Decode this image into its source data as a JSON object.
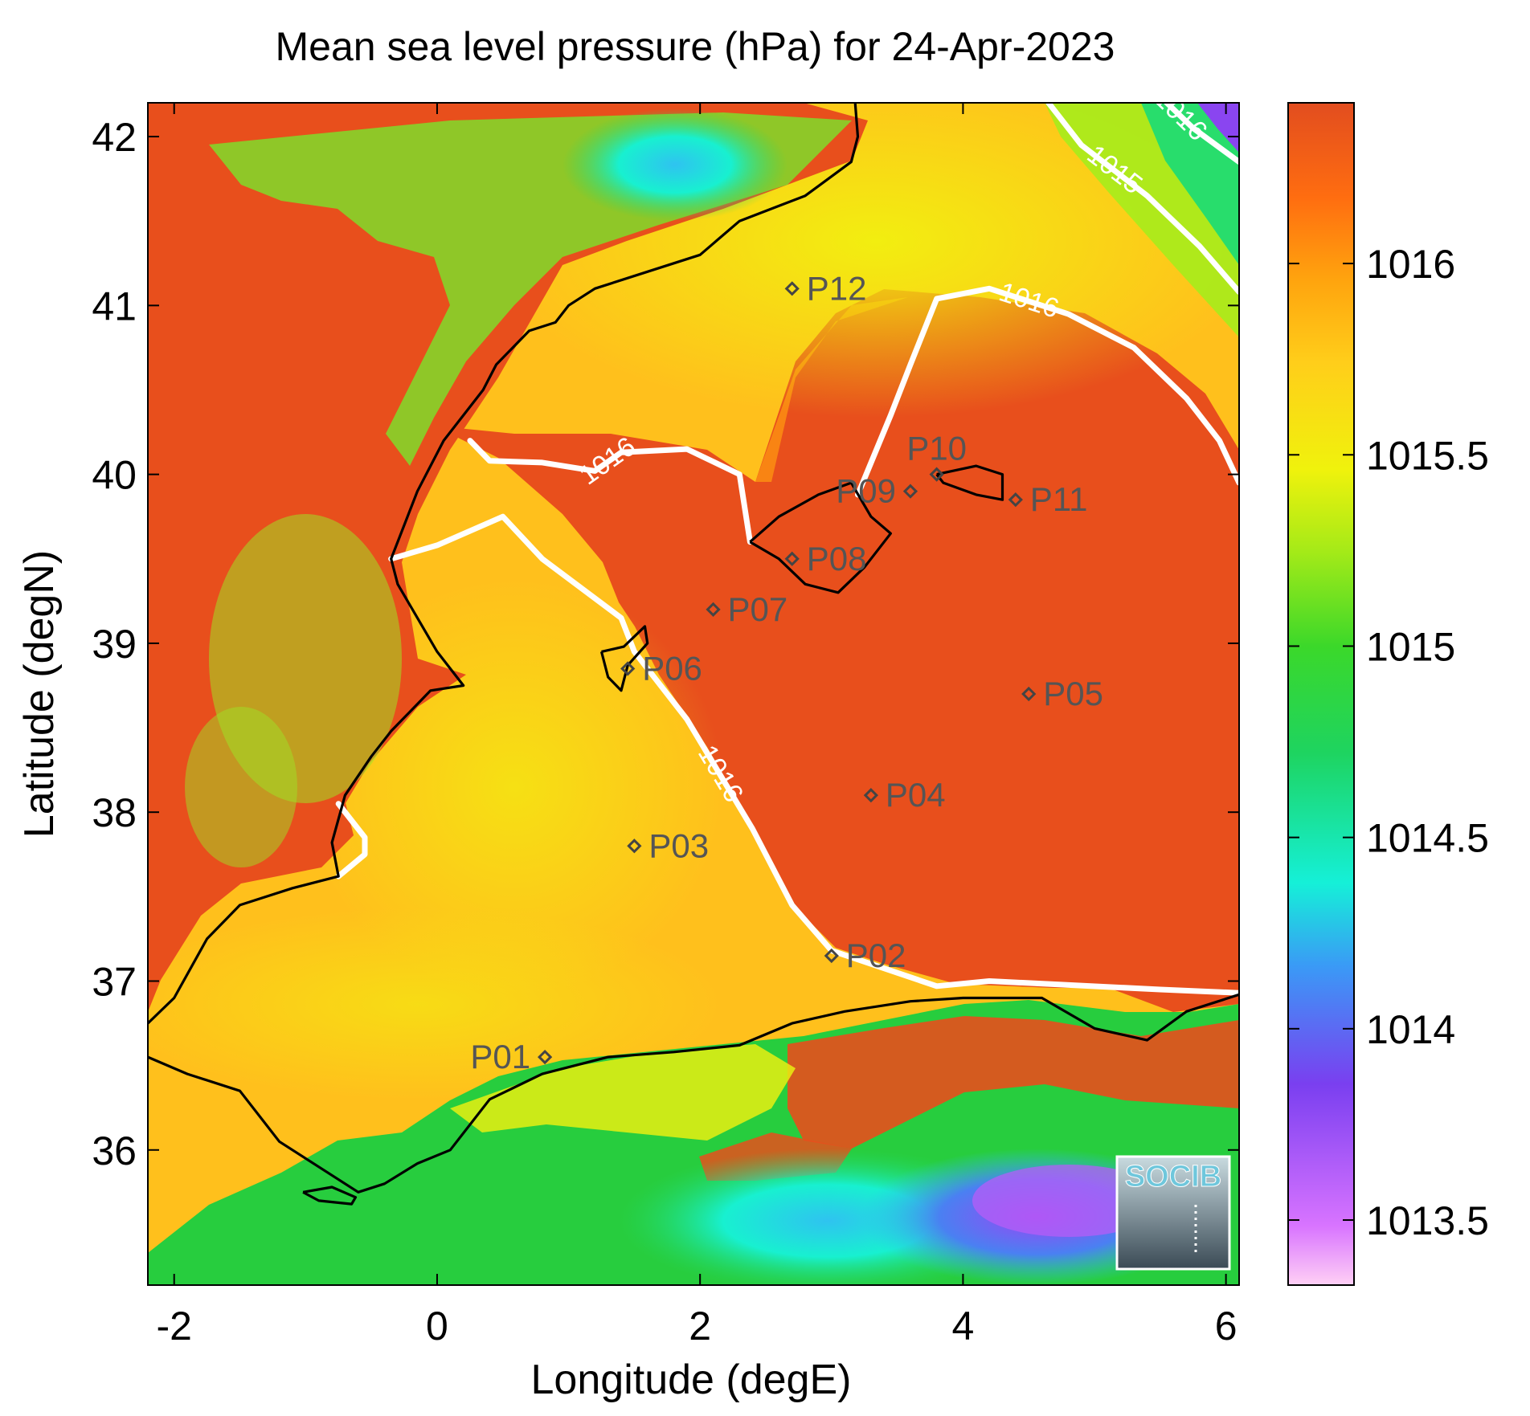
{
  "chart_data": {
    "type": "heatmap",
    "title": "Mean sea level pressure (hPa) for 24-Apr-2023",
    "xlabel": "Longitude (degE)",
    "ylabel": "Latitude (degN)",
    "xlim": [
      -2.2,
      6.1
    ],
    "ylim": [
      35.2,
      42.2
    ],
    "x_ticks": [
      -2,
      0,
      2,
      4,
      6
    ],
    "x_tick_labels": [
      "-2",
      "0",
      "2",
      "4",
      "6"
    ],
    "y_ticks": [
      36,
      37,
      38,
      39,
      40,
      41,
      42
    ],
    "y_tick_labels": [
      "36",
      "37",
      "38",
      "39",
      "40",
      "41",
      "42"
    ],
    "colorbar": {
      "label": "",
      "range": [
        1013.33,
        1016.42
      ],
      "ticks": [
        1013.5,
        1014,
        1014.5,
        1015,
        1015.5,
        1016
      ],
      "tick_labels": [
        "1013.5",
        "1014",
        "1014.5",
        "1015",
        "1015.5",
        "1016"
      ],
      "colors": [
        "#ffd0f5",
        "#c060ff",
        "#7a3ff0",
        "#35b7f6",
        "#15f0d8",
        "#1ed460",
        "#28d82a",
        "#8ee81b",
        "#e9f00e",
        "#ffd31a",
        "#ffa20e",
        "#ff7a10",
        "#f05a18",
        "#e24d1f"
      ]
    },
    "contours": [
      {
        "level": 1015,
        "label": "1015",
        "points": [
          [
            4.65,
            42.2
          ],
          [
            4.9,
            41.95
          ],
          [
            5.4,
            41.65
          ],
          [
            5.8,
            41.35
          ],
          [
            6.1,
            41.08
          ]
        ]
      },
      {
        "level": 1016,
        "label": "1016",
        "points": [
          [
            5.55,
            42.2
          ],
          [
            5.75,
            42.05
          ],
          [
            6.1,
            41.85
          ]
        ]
      },
      {
        "level": 1016,
        "label": "1016",
        "points": [
          [
            3.2,
            39.88
          ],
          [
            3.45,
            40.35
          ],
          [
            3.6,
            40.65
          ],
          [
            3.8,
            41.04
          ],
          [
            4.2,
            41.1
          ],
          [
            4.8,
            40.95
          ],
          [
            5.3,
            40.75
          ],
          [
            5.7,
            40.45
          ],
          [
            5.95,
            40.2
          ],
          [
            6.1,
            39.95
          ]
        ]
      },
      {
        "level": 1016,
        "label": "1016",
        "points": [
          [
            0.25,
            40.2
          ],
          [
            0.4,
            40.08
          ],
          [
            0.8,
            40.07
          ],
          [
            1.2,
            40.02
          ],
          [
            1.4,
            40.13
          ],
          [
            1.9,
            40.15
          ],
          [
            2.3,
            40.0
          ],
          [
            2.38,
            39.6
          ]
        ]
      },
      {
        "level": 1016,
        "label": "1016",
        "points": [
          [
            -0.35,
            39.5
          ],
          [
            0.0,
            39.58
          ],
          [
            0.5,
            39.75
          ],
          [
            0.8,
            39.5
          ],
          [
            1.4,
            39.15
          ],
          [
            1.5,
            38.95
          ],
          [
            1.9,
            38.55
          ],
          [
            2.4,
            37.9
          ],
          [
            2.7,
            37.45
          ],
          [
            3.0,
            37.18
          ],
          [
            3.8,
            36.97
          ],
          [
            4.2,
            37.0
          ],
          [
            5.5,
            36.95
          ],
          [
            6.1,
            36.93
          ]
        ]
      },
      {
        "level": 1016,
        "label": "",
        "points": [
          [
            -0.75,
            38.05
          ],
          [
            -0.55,
            37.85
          ],
          [
            -0.55,
            37.75
          ],
          [
            -0.75,
            37.62
          ]
        ]
      }
    ],
    "coastlines": [
      {
        "points": [
          [
            -2.2,
            36.75
          ],
          [
            -2.0,
            36.9
          ],
          [
            -1.75,
            37.25
          ],
          [
            -1.5,
            37.45
          ],
          [
            -1.1,
            37.55
          ],
          [
            -0.75,
            37.62
          ],
          [
            -0.8,
            37.82
          ],
          [
            -0.7,
            38.1
          ],
          [
            -0.5,
            38.33
          ],
          [
            -0.35,
            38.48
          ],
          [
            -0.05,
            38.72
          ],
          [
            0.2,
            38.75
          ],
          [
            0.0,
            38.95
          ],
          [
            -0.3,
            39.35
          ],
          [
            -0.35,
            39.5
          ],
          [
            -0.15,
            39.9
          ],
          [
            0.05,
            40.2
          ],
          [
            0.35,
            40.5
          ],
          [
            0.45,
            40.65
          ],
          [
            0.7,
            40.85
          ],
          [
            0.9,
            40.9
          ],
          [
            1.0,
            41.0
          ],
          [
            1.2,
            41.1
          ],
          [
            1.6,
            41.2
          ],
          [
            2.0,
            41.3
          ],
          [
            2.3,
            41.5
          ],
          [
            2.8,
            41.65
          ],
          [
            3.15,
            41.85
          ],
          [
            3.2,
            42.0
          ],
          [
            3.18,
            42.2
          ]
        ]
      },
      {
        "points": [
          [
            -2.2,
            36.55
          ],
          [
            -1.9,
            36.45
          ],
          [
            -1.5,
            36.35
          ],
          [
            -1.2,
            36.05
          ],
          [
            -0.9,
            35.9
          ],
          [
            -0.6,
            35.75
          ],
          [
            -0.4,
            35.8
          ],
          [
            -0.15,
            35.92
          ],
          [
            0.1,
            36.0
          ],
          [
            0.4,
            36.3
          ],
          [
            0.8,
            36.45
          ],
          [
            1.3,
            36.55
          ],
          [
            1.8,
            36.58
          ],
          [
            2.3,
            36.62
          ],
          [
            2.7,
            36.75
          ],
          [
            3.1,
            36.82
          ],
          [
            3.6,
            36.88
          ],
          [
            4.0,
            36.9
          ],
          [
            4.6,
            36.9
          ],
          [
            5.0,
            36.72
          ],
          [
            5.4,
            36.65
          ],
          [
            5.7,
            36.82
          ],
          [
            6.1,
            36.92
          ]
        ]
      },
      {
        "points": [
          [
            2.38,
            39.6
          ],
          [
            2.6,
            39.5
          ],
          [
            2.8,
            39.35
          ],
          [
            3.05,
            39.3
          ],
          [
            3.25,
            39.45
          ],
          [
            3.45,
            39.65
          ],
          [
            3.3,
            39.75
          ],
          [
            3.15,
            39.95
          ],
          [
            2.9,
            39.88
          ],
          [
            2.6,
            39.75
          ],
          [
            2.38,
            39.6
          ]
        ]
      },
      {
        "points": [
          [
            3.8,
            40.0
          ],
          [
            4.1,
            40.05
          ],
          [
            4.3,
            40.0
          ],
          [
            4.3,
            39.85
          ],
          [
            4.1,
            39.88
          ],
          [
            3.85,
            39.95
          ],
          [
            3.8,
            40.0
          ]
        ]
      },
      {
        "points": [
          [
            1.25,
            38.95
          ],
          [
            1.42,
            38.98
          ],
          [
            1.58,
            39.1
          ],
          [
            1.6,
            39.0
          ],
          [
            1.45,
            38.87
          ],
          [
            1.4,
            38.72
          ],
          [
            1.3,
            38.8
          ],
          [
            1.25,
            38.95
          ]
        ]
      },
      {
        "points": [
          [
            -1.02,
            35.75
          ],
          [
            -0.8,
            35.78
          ],
          [
            -0.62,
            35.72
          ],
          [
            -0.65,
            35.68
          ],
          [
            -0.9,
            35.7
          ],
          [
            -1.02,
            35.75
          ]
        ]
      }
    ],
    "stations": [
      {
        "name": "P01",
        "lon": 0.82,
        "lat": 36.55,
        "label_side": "left"
      },
      {
        "name": "P02",
        "lon": 3.0,
        "lat": 37.15,
        "label_side": "right"
      },
      {
        "name": "P03",
        "lon": 1.5,
        "lat": 37.8,
        "label_side": "right"
      },
      {
        "name": "P04",
        "lon": 3.3,
        "lat": 38.1,
        "label_side": "right"
      },
      {
        "name": "P05",
        "lon": 4.5,
        "lat": 38.7,
        "label_side": "right"
      },
      {
        "name": "P06",
        "lon": 1.45,
        "lat": 38.85,
        "label_side": "right"
      },
      {
        "name": "P07",
        "lon": 2.1,
        "lat": 39.2,
        "label_side": "right"
      },
      {
        "name": "P08",
        "lon": 2.7,
        "lat": 39.5,
        "label_side": "right"
      },
      {
        "name": "P09",
        "lon": 3.6,
        "lat": 39.9,
        "label_side": "left"
      },
      {
        "name": "P10",
        "lon": 3.8,
        "lat": 40.0,
        "label_side": "above"
      },
      {
        "name": "P11",
        "lon": 4.4,
        "lat": 39.85,
        "label_side": "right"
      },
      {
        "name": "P12",
        "lon": 2.7,
        "lat": 41.1,
        "label_side": "right"
      }
    ],
    "grid": false,
    "logo_text": "SOCIB"
  }
}
